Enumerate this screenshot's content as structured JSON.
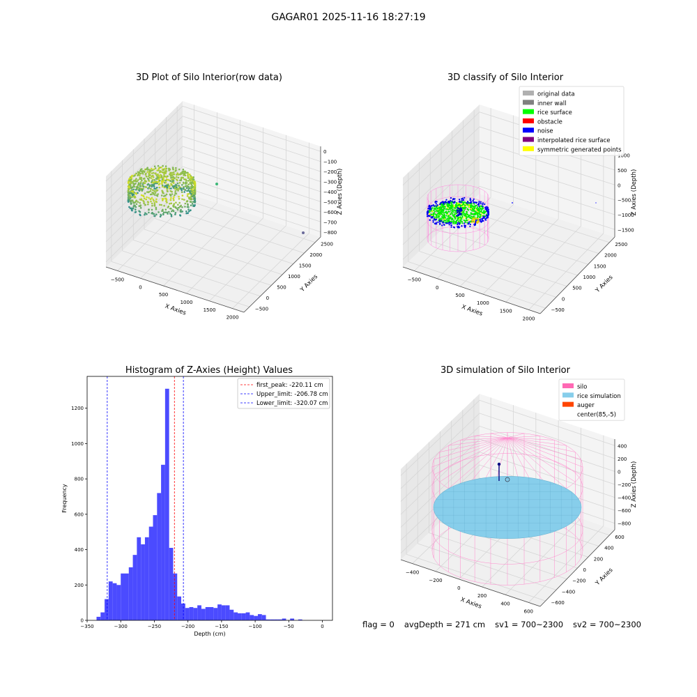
{
  "suptitle": "GAGAR01 2025-11-16 18:27:19",
  "status": {
    "flag": "flag = 0",
    "avg_depth": "avgDepth = 271 cm",
    "sv1": "sv1 = 700~2300",
    "sv2": "sv2 = 700~2300"
  },
  "chart_data": [
    {
      "type": "scatter3d",
      "title": "3D Plot of Silo Interior(row data)",
      "xlabel": "X Axies",
      "ylabel": "Y Axies",
      "zlabel": "Z Axies (Depth)",
      "x_ticks": [
        "−500",
        "0",
        "500",
        "1000",
        "1500",
        "2000"
      ],
      "y_ticks": [
        "−500",
        "0",
        "500",
        "1000",
        "1500",
        "2000",
        "2500"
      ],
      "z_ticks": [
        "0",
        "−100",
        "−200",
        "−300",
        "−400",
        "−500",
        "−600",
        "−700",
        "−800"
      ],
      "colors": {
        "low": "#2c8c8c",
        "high": "#d4e021"
      }
    },
    {
      "type": "scatter3d",
      "title": "3D classify of Silo Interior",
      "xlabel": "X Axies",
      "ylabel": "Y Axies",
      "zlabel": "Z Axies (Depth)",
      "x_ticks": [
        "−500",
        "0",
        "500",
        "1000",
        "1500",
        "2000"
      ],
      "y_ticks": [
        "−500",
        "0",
        "500",
        "1000",
        "1500",
        "2000",
        "2500"
      ],
      "z_ticks": [
        "1000",
        "500",
        "0",
        "−500",
        "−1000",
        "−1500"
      ],
      "legend": [
        {
          "label": "original data",
          "color": "#b0b0b0"
        },
        {
          "label": "inner wall",
          "color": "#808080"
        },
        {
          "label": "rice surface",
          "color": "#00ff00"
        },
        {
          "label": "obstacle",
          "color": "#ff0000"
        },
        {
          "label": "noise",
          "color": "#0000ff"
        },
        {
          "label": "interpolated rice surface",
          "color": "#800080"
        },
        {
          "label": "symmetric generated points",
          "color": "#ffff00"
        }
      ],
      "legend_position": "top-right"
    },
    {
      "type": "bar",
      "title": "Histogram of Z-Axies (Height) Values",
      "xlabel": "Depth (cm)",
      "ylabel": "Frequency",
      "xlim": [
        -350,
        15
      ],
      "ylim": [
        0,
        1380
      ],
      "x_ticks": [
        -350,
        -300,
        -250,
        -200,
        -150,
        -100,
        -50,
        0
      ],
      "y_ticks": [
        0,
        200,
        400,
        600,
        800,
        1000,
        1200
      ],
      "bin_width": 6.0,
      "bin_starts": [
        -336,
        -330,
        -324,
        -318,
        -312,
        -306,
        -300,
        -294,
        -288,
        -282,
        -276,
        -270,
        -264,
        -258,
        -252,
        -246,
        -240,
        -234,
        -228,
        -222,
        -216,
        -210,
        -204,
        -198,
        -192,
        -186,
        -180,
        -174,
        -168,
        -162,
        -156,
        -150,
        -144,
        -138,
        -132,
        -126,
        -120,
        -114,
        -108,
        -102,
        -96,
        -90,
        -84,
        -78,
        -72,
        -66,
        -60,
        -54,
        -48,
        -42,
        -36,
        -30,
        -24,
        -18,
        -12,
        -6,
        0
      ],
      "values": [
        20,
        45,
        120,
        220,
        210,
        200,
        265,
        265,
        300,
        370,
        470,
        430,
        470,
        530,
        595,
        720,
        880,
        1310,
        410,
        265,
        135,
        95,
        70,
        75,
        70,
        85,
        65,
        75,
        75,
        70,
        90,
        85,
        85,
        60,
        45,
        40,
        40,
        45,
        30,
        25,
        35,
        30,
        5,
        5,
        5,
        5,
        10,
        0,
        10,
        0,
        5,
        0,
        0,
        0,
        0,
        0,
        0
      ],
      "bar_color": "#4b4bff",
      "vlines": [
        {
          "label": "first_peak: -220.11 cm",
          "x": -220.11,
          "color": "#ff0000"
        },
        {
          "label": "Upper_limit: -206.78 cm",
          "x": -206.78,
          "color": "#0000ff"
        },
        {
          "label": "Lower_limit: -320.07 cm",
          "x": -320.07,
          "color": "#0000ff"
        }
      ],
      "legend_position": "top-right"
    },
    {
      "type": "surface3d",
      "title": "3D simulation of Silo Interior",
      "xlabel": "X Axies",
      "ylabel": "Y Axies",
      "zlabel": "Z Axies (Depth)",
      "x_ticks": [
        "−400",
        "−200",
        "0",
        "200",
        "400",
        "600"
      ],
      "y_ticks": [
        "−600",
        "−400",
        "−200",
        "0",
        "200",
        "400",
        "600"
      ],
      "z_ticks": [
        "400",
        "200",
        "0",
        "−200",
        "−400",
        "−600",
        "−800"
      ],
      "legend": [
        {
          "label": "silo",
          "color": "#ff69b4"
        },
        {
          "label": "rice simulation",
          "color": "#87ceeb"
        },
        {
          "label": "auger",
          "color": "#ff4500"
        },
        {
          "label": "center(85,-5)",
          "color": ""
        }
      ],
      "legend_position": "top-right"
    }
  ]
}
